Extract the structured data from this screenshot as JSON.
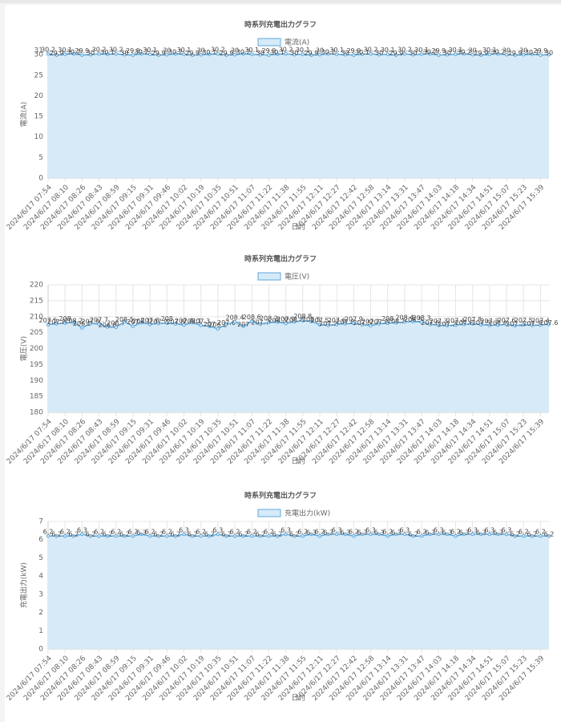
{
  "chart_data": [
    {
      "type": "line",
      "title": "時系列充電出力グラフ",
      "x_label": "日付",
      "y_label": "電流(A)",
      "categories": [
        "2024/6/17 07:54",
        null,
        "2024/6/17 08:10",
        null,
        "2024/6/17 08:26",
        null,
        "2024/6/17 08:43",
        null,
        "2024/6/17 08:59",
        null,
        "2024/6/17 09:15",
        null,
        "2024/6/17 09:31",
        null,
        "2024/6/17 09:46",
        null,
        "2024/6/17 10:02",
        null,
        "2024/6/17 10:19",
        null,
        "2024/6/17 10:35",
        null,
        "2024/6/17 10:51",
        null,
        "2024/6/17 11:07",
        null,
        "2024/6/17 11:22",
        null,
        "2024/6/17 11:38",
        null,
        "2024/6/17 11:55",
        null,
        "2024/6/17 12:11",
        null,
        "2024/6/17 12:27",
        null,
        "2024/6/17 12:42",
        null,
        "2024/6/17 12:58",
        null,
        "2024/6/17 13:14",
        null,
        "2024/6/17 13:31",
        null,
        "2024/6/17 13:47",
        null,
        "2024/6/17 14:03",
        null,
        "2024/6/17 14:18",
        null,
        "2024/6/17 14:34",
        null,
        "2024/6/17 14:51",
        null,
        "2024/6/17 15:07",
        null,
        "2024/6/17 15:23",
        null,
        "2024/6/17 15:39",
        null
      ],
      "series": [
        {
          "name": "電流(A)",
          "color": "#5fa8dc",
          "fill": "#d6eaf8",
          "values": [
            30.2,
            29.9,
            30.1,
            30.2,
            29.9,
            30,
            30.2,
            30.1,
            30.2,
            30,
            29.9,
            30.2,
            30.1,
            29.9,
            30,
            30.2,
            30.1,
            29.9,
            30,
            30.1,
            30.2,
            29.9,
            30,
            30.2,
            30.1,
            30,
            29.9,
            30.1,
            30.2,
            30,
            30.1,
            29.9,
            30,
            30.2,
            30.1,
            30,
            29.9,
            30.1,
            30.2,
            30,
            30.1,
            29.9,
            30.2,
            30,
            30.1,
            30.2,
            29.9,
            30,
            30.1,
            30.2,
            30,
            29.9,
            30.1,
            30.2,
            30,
            29.9,
            30,
            30.1,
            29.9,
            30
          ]
        }
      ],
      "ylim": [
        0,
        31
      ],
      "yticks": [
        0,
        5,
        10,
        15,
        20,
        25,
        30,
        31
      ],
      "grid": true
    },
    {
      "type": "line",
      "title": "時系列充電出力グラフ",
      "x_label": "日付",
      "y_label": "電圧(V)",
      "categories": [
        "2024/6/17 07:54",
        null,
        "2024/6/17 08:10",
        null,
        "2024/6/17 08:26",
        null,
        "2024/6/17 08:43",
        null,
        "2024/6/17 08:59",
        null,
        "2024/6/17 09:15",
        null,
        "2024/6/17 09:31",
        null,
        "2024/6/17 09:46",
        null,
        "2024/6/17 10:02",
        null,
        "2024/6/17 10:19",
        null,
        "2024/6/17 10:35",
        null,
        "2024/6/17 10:51",
        null,
        "2024/6/17 11:07",
        null,
        "2024/6/17 11:22",
        null,
        "2024/6/17 11:38",
        null,
        "2024/6/17 11:55",
        null,
        "2024/6/17 12:11",
        null,
        "2024/6/17 12:27",
        null,
        "2024/6/17 12:42",
        null,
        "2024/6/17 12:58",
        null,
        "2024/6/17 13:14",
        null,
        "2024/6/17 13:31",
        null,
        "2024/6/17 13:47",
        null,
        "2024/6/17 14:03",
        null,
        "2024/6/17 14:18",
        null,
        "2024/6/17 14:34",
        null,
        "2024/6/17 14:51",
        null,
        "2024/6/17 15:07",
        null,
        "2024/6/17 15:23",
        null,
        "2024/6/17 15:39",
        null
      ],
      "series": [
        {
          "name": "電圧(V)",
          "color": "#5fa8dc",
          "fill": "#d6eaf8",
          "values": [
            207.5,
            207.8,
            208,
            208.2,
            206.5,
            207.9,
            207.7,
            206.8,
            206.7,
            208.5,
            207,
            208.1,
            207.6,
            207.9,
            208,
            207.8,
            207.4,
            208.1,
            207.3,
            207,
            206.2,
            207.6,
            208.4,
            207,
            208.6,
            207.7,
            208.2,
            208.3,
            207.9,
            208.4,
            208.8,
            208.5,
            207.5,
            207.3,
            207.6,
            207.8,
            207.9,
            207.5,
            207.2,
            207.8,
            208,
            208.1,
            208.4,
            208.5,
            208.3,
            207.6,
            207.3,
            207.2,
            207.4,
            207.6,
            207.8,
            207.5,
            207.3,
            207.4,
            207.6,
            207.2,
            207.5,
            207.3,
            207.4,
            207.6
          ]
        }
      ],
      "ylim": [
        180,
        220
      ],
      "yticks": [
        180,
        185,
        190,
        195,
        200,
        205,
        210,
        215,
        220
      ],
      "grid": true
    },
    {
      "type": "line",
      "title": "時系列充電出力グラフ",
      "x_label": "日付",
      "y_label": "充電出力(kW)",
      "categories": [
        "2024/6/17 07:54",
        null,
        "2024/6/17 08:10",
        null,
        "2024/6/17 08:26",
        null,
        "2024/6/17 08:43",
        null,
        "2024/6/17 08:59",
        null,
        "2024/6/17 09:15",
        null,
        "2024/6/17 09:31",
        null,
        "2024/6/17 09:46",
        null,
        "2024/6/17 10:02",
        null,
        "2024/6/17 10:19",
        null,
        "2024/6/17 10:35",
        null,
        "2024/6/17 10:51",
        null,
        "2024/6/17 11:07",
        null,
        "2024/6/17 11:22",
        null,
        "2024/6/17 11:38",
        null,
        "2024/6/17 11:55",
        null,
        "2024/6/17 12:11",
        null,
        "2024/6/17 12:27",
        null,
        "2024/6/17 12:42",
        null,
        "2024/6/17 12:58",
        null,
        "2024/6/17 13:14",
        null,
        "2024/6/17 13:31",
        null,
        "2024/6/17 13:47",
        null,
        "2024/6/17 14:03",
        null,
        "2024/6/17 14:18",
        null,
        "2024/6/17 14:34",
        null,
        "2024/6/17 14:51",
        null,
        "2024/6/17 15:07",
        null,
        "2024/6/17 15:23",
        null,
        "2024/6/17 15:39",
        null
      ],
      "series": [
        {
          "name": "充電出力(kW)",
          "color": "#5fa8dc",
          "fill": "#d6eaf8",
          "values": [
            6.2,
            6.2,
            6.2,
            6.2,
            6.3,
            6.2,
            6.2,
            6.2,
            6.2,
            6.2,
            6.2,
            6.3,
            6.2,
            6.2,
            6.2,
            6.2,
            6.3,
            6.2,
            6.2,
            6.2,
            6.3,
            6.2,
            6.2,
            6.2,
            6.2,
            6.2,
            6.2,
            6.2,
            6.3,
            6.2,
            6.2,
            6.3,
            6.2,
            6.3,
            6.3,
            6.3,
            6.2,
            6.3,
            6.3,
            6.3,
            6.2,
            6.3,
            6.3,
            6.2,
            6.2,
            6.3,
            6.3,
            6.3,
            6.2,
            6.3,
            6.3,
            6.3,
            6.3,
            6.3,
            6.3,
            6.2,
            6.2,
            6.2,
            6.2,
            6.2
          ]
        }
      ],
      "ylim": [
        0,
        7
      ],
      "yticks": [
        0,
        1,
        2,
        3,
        4,
        5,
        6,
        7
      ],
      "grid": true
    }
  ]
}
